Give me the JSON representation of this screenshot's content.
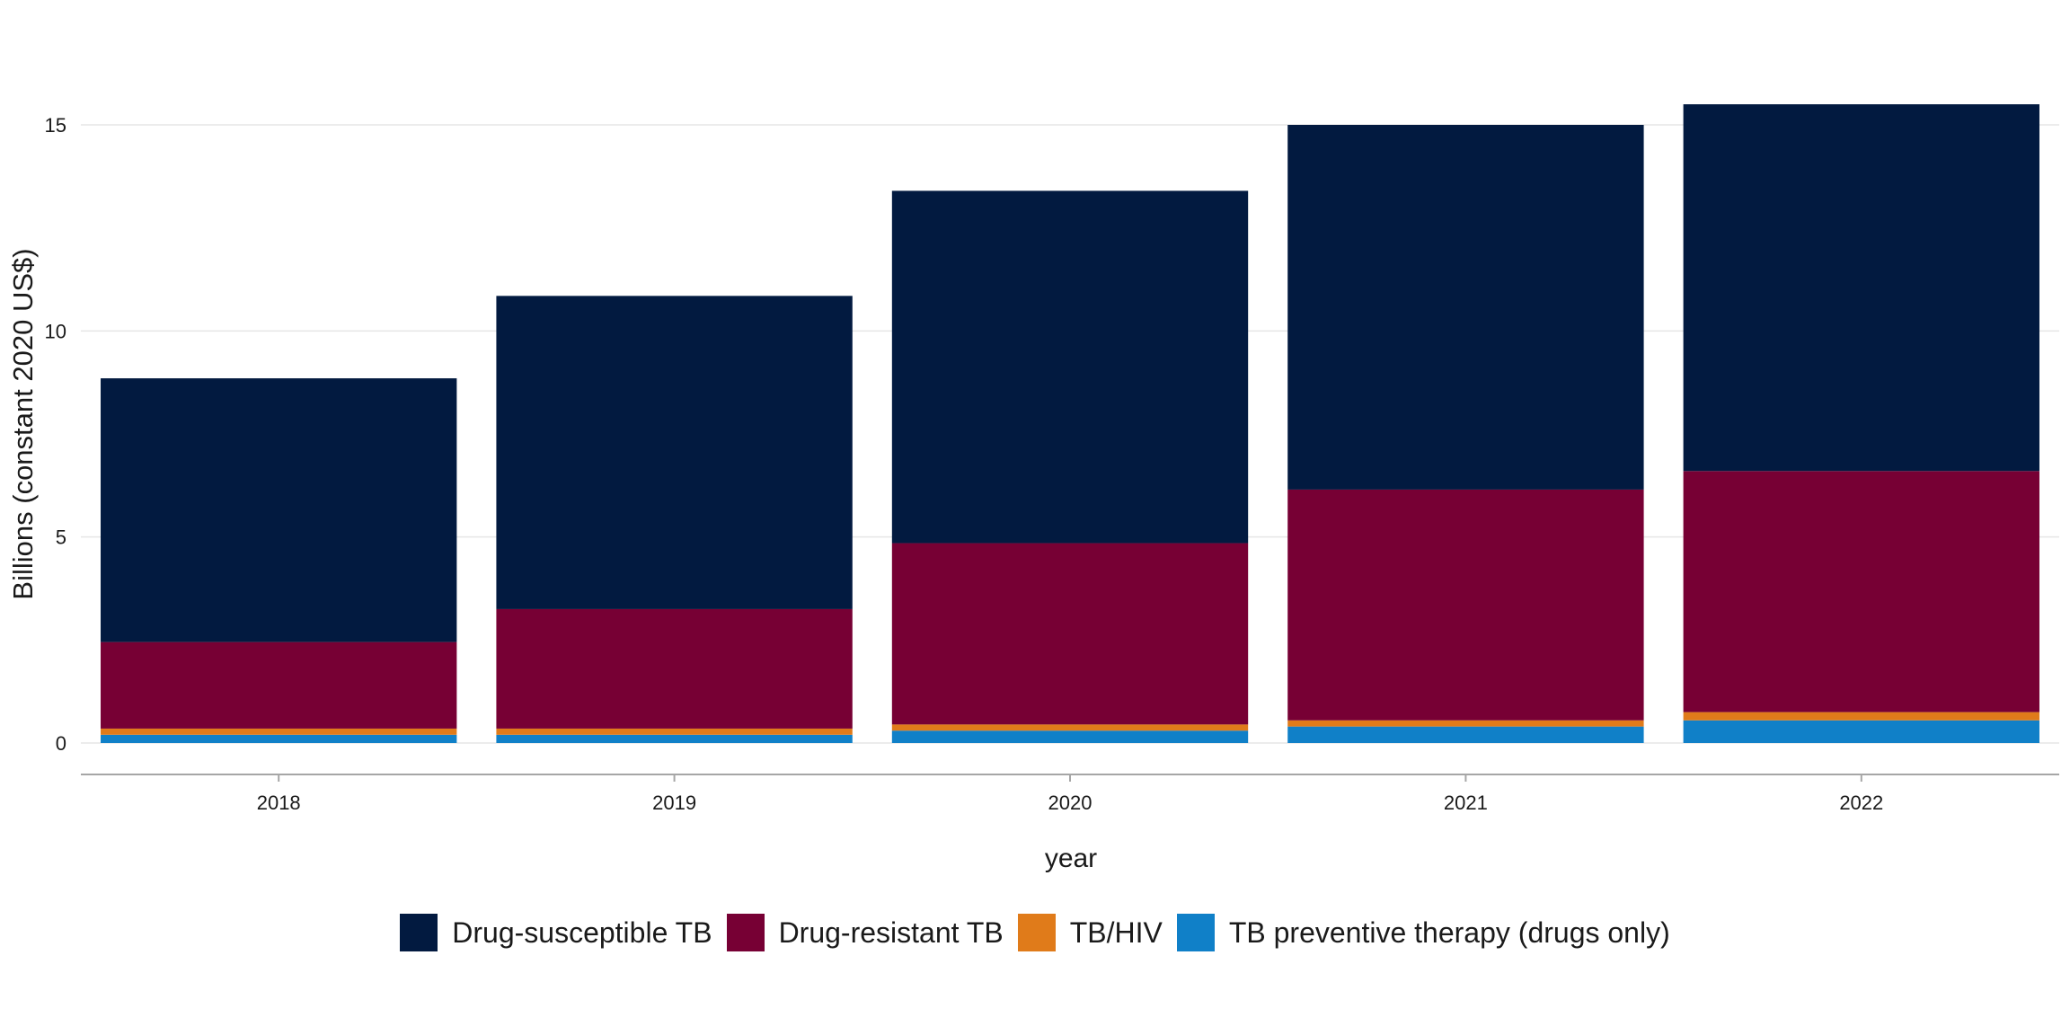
{
  "chart_data": {
    "type": "bar",
    "stacked": true,
    "title": "",
    "xlabel": "year",
    "ylabel": "Billions (constant 2020 US$)",
    "categories": [
      "2018",
      "2019",
      "2020",
      "2021",
      "2022"
    ],
    "ylim": [
      0,
      15.5
    ],
    "yticks": [
      0,
      5,
      10,
      15
    ],
    "grid": "horizontal",
    "legend_position": "bottom",
    "series": [
      {
        "name": "TB preventive therapy (drugs only)",
        "color": "#1080c8",
        "values": [
          0.2,
          0.2,
          0.3,
          0.4,
          0.55
        ]
      },
      {
        "name": "TB/HIV",
        "color": "#e07b1a",
        "values": [
          0.15,
          0.15,
          0.15,
          0.15,
          0.2
        ]
      },
      {
        "name": "Drug-resistant TB",
        "color": "#770034",
        "values": [
          2.1,
          2.9,
          4.4,
          5.6,
          5.85
        ]
      },
      {
        "name": "Drug-susceptible TB",
        "color": "#021a40",
        "values": [
          6.4,
          7.6,
          8.55,
          8.85,
          8.9
        ]
      }
    ],
    "legend_order": [
      "Drug-susceptible TB",
      "Drug-resistant TB",
      "TB/HIV",
      "TB preventive therapy (drugs only)"
    ]
  }
}
